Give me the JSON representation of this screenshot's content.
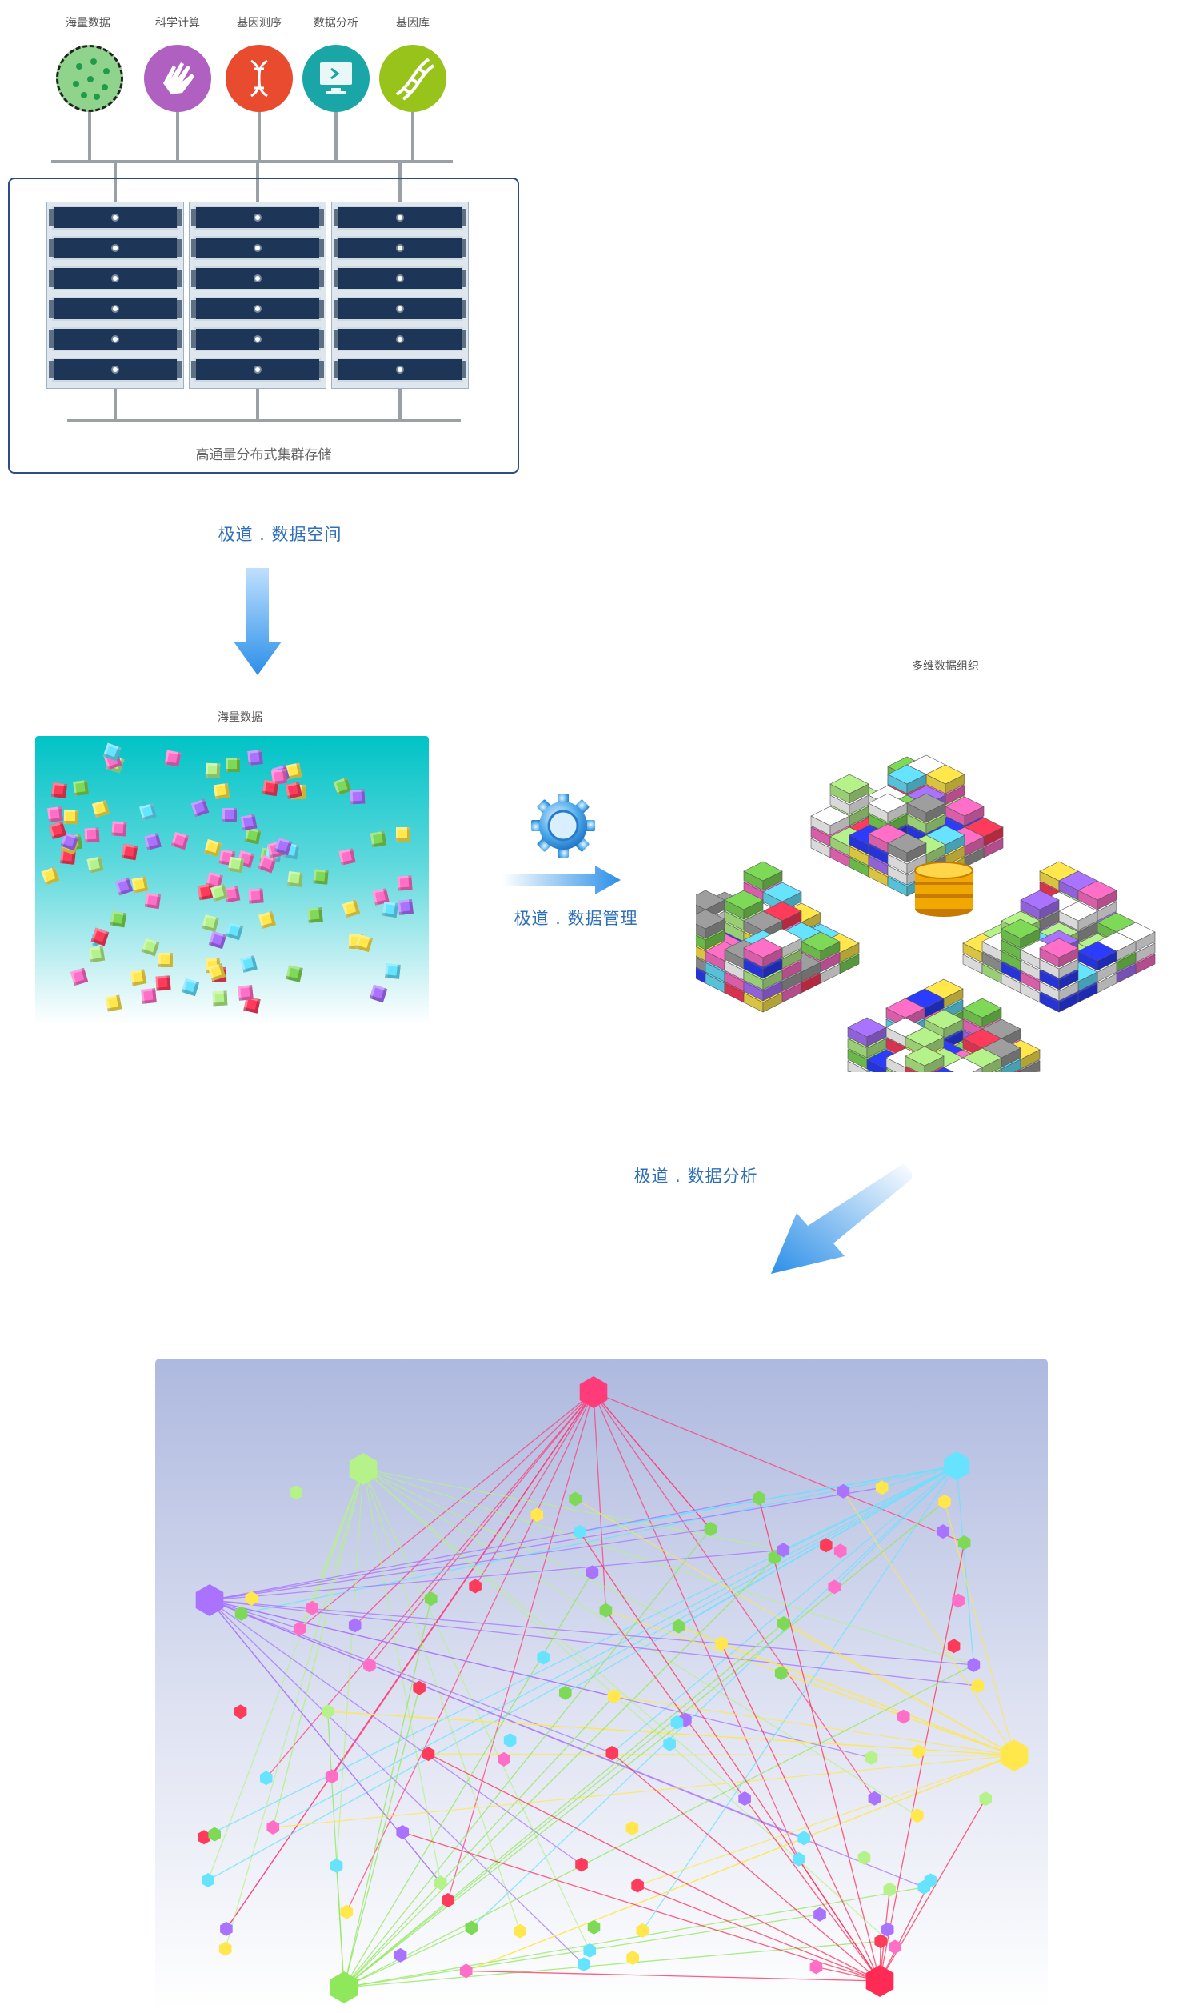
{
  "sources": [
    {
      "label": "海量数据",
      "icon": "dotted-data-icon",
      "color": "#8fd38d"
    },
    {
      "label": "科学计算",
      "icon": "glove-hand-icon",
      "color": "#b060c0"
    },
    {
      "label": "基因测序",
      "icon": "dna-helix-icon",
      "color": "#e94b2f"
    },
    {
      "label": "数据分析",
      "icon": "monitor-icon",
      "color": "#1aa6a6"
    },
    {
      "label": "基因库",
      "icon": "dna-strand-icon",
      "color": "#97c31b"
    }
  ],
  "cluster": {
    "caption": "高通量分布式集群存储",
    "racks": 3,
    "units_per_rack": 6
  },
  "steps": {
    "space": "极道 . 数据空间",
    "manage": "极道 . 数据管理",
    "analyze": "极道 . 数据分析"
  },
  "mass_data": {
    "label": "海量数据"
  },
  "multi_dim": {
    "label": "多维数据组织"
  },
  "colors": {
    "accent_blue": "#2f6fb8",
    "arrow_blue": "#3a9df0",
    "cube_palette": [
      "#ff6ec7",
      "#7ed957",
      "#a972ff",
      "#ffe74c",
      "#ff3b5c",
      "#66e3ff",
      "#b5f28a"
    ]
  }
}
